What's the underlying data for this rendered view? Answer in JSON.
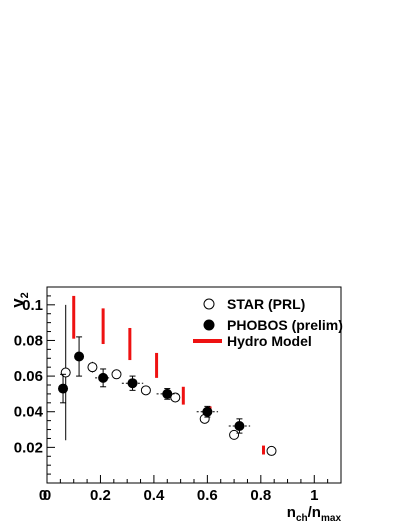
{
  "chart_data": {
    "type": "scatter",
    "xlabel": {
      "main": "n",
      "sub1": "ch",
      "mid": "/n",
      "sub2": "max"
    },
    "ylabel": {
      "main": "v",
      "sub": "2"
    },
    "xlim": [
      0,
      1.1
    ],
    "ylim": [
      0,
      0.11
    ],
    "x_ticks": [
      0,
      0.2,
      0.4,
      0.6,
      0.8,
      1
    ],
    "x_tick_labels": [
      "0",
      "0.2",
      "0.4",
      "0.6",
      "0.8",
      "1"
    ],
    "y_ticks": [
      0.02,
      0.04,
      0.06,
      0.08,
      0.1
    ],
    "y_tick_labels": [
      "0.02",
      "0.04",
      "0.06",
      "0.08",
      "0.1"
    ],
    "legend_position": "top-right",
    "series": [
      {
        "name": "STAR (PRL)",
        "marker": "open-circle",
        "color": "#000000",
        "points": [
          {
            "x": 0.07,
            "y": 0.062,
            "yerr": 0.038
          },
          {
            "x": 0.17,
            "y": 0.065,
            "yerr": 0.003
          },
          {
            "x": 0.26,
            "y": 0.061,
            "yerr": 0.002
          },
          {
            "x": 0.37,
            "y": 0.052,
            "yerr": 0.002
          },
          {
            "x": 0.48,
            "y": 0.048,
            "yerr": 0.002
          },
          {
            "x": 0.59,
            "y": 0.036,
            "yerr": 0.002
          },
          {
            "x": 0.7,
            "y": 0.027,
            "yerr": 0.002
          },
          {
            "x": 0.84,
            "y": 0.018,
            "yerr": 0.002
          }
        ]
      },
      {
        "name": "PHOBOS (prelim)",
        "marker": "filled-circle",
        "color": "#000000",
        "points": [
          {
            "x": 0.06,
            "y": 0.053,
            "yerr": 0.008,
            "xerr": 0.0
          },
          {
            "x": 0.12,
            "y": 0.071,
            "yerr": 0.011,
            "xerr": 0.0
          },
          {
            "x": 0.21,
            "y": 0.059,
            "yerr": 0.005,
            "xerr": 0.03
          },
          {
            "x": 0.32,
            "y": 0.056,
            "yerr": 0.004,
            "xerr": 0.04
          },
          {
            "x": 0.45,
            "y": 0.05,
            "yerr": 0.003,
            "xerr": 0.04
          },
          {
            "x": 0.6,
            "y": 0.04,
            "yerr": 0.003,
            "xerr": 0.04
          },
          {
            "x": 0.72,
            "y": 0.032,
            "yerr": 0.004,
            "xerr": 0.04
          }
        ]
      },
      {
        "name": "Hydro Model",
        "marker": "vertical-band",
        "color": "#ee1111",
        "bands": [
          {
            "x": 0.1,
            "ymin": 0.081,
            "ymax": 0.105
          },
          {
            "x": 0.21,
            "ymin": 0.078,
            "ymax": 0.098
          },
          {
            "x": 0.31,
            "ymin": 0.069,
            "ymax": 0.087
          },
          {
            "x": 0.41,
            "ymin": 0.059,
            "ymax": 0.073
          },
          {
            "x": 0.51,
            "ymin": 0.044,
            "ymax": 0.054
          },
          {
            "x": 0.61,
            "ymin": 0.039,
            "ymax": 0.043
          },
          {
            "x": 0.81,
            "ymin": 0.016,
            "ymax": 0.021
          }
        ]
      }
    ]
  }
}
